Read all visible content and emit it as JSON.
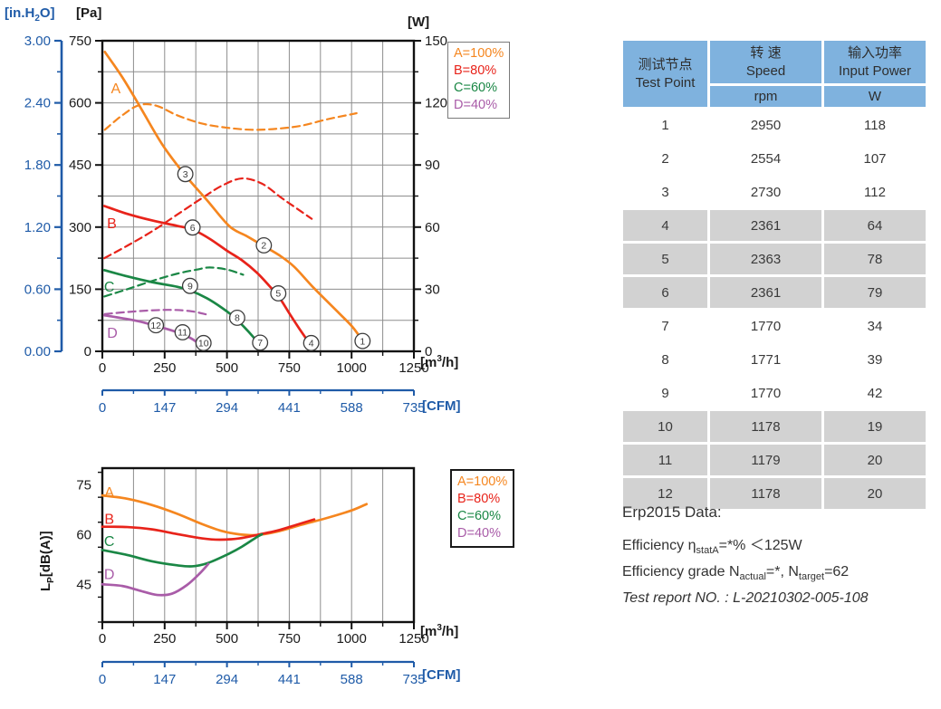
{
  "colors": {
    "orange": "#F5861F",
    "red": "#E8231A",
    "green": "#1A8745",
    "purple": "#A95CA8",
    "axis_blue": "#1F5BA8",
    "grid": "#8d8d8d",
    "frame": "#111111",
    "table_header_bg": "#7FB2DE",
    "table_shaded_bg": "#d2d2d2"
  },
  "axis_labels": {
    "inh2o": {
      "pre": "[in.H",
      "sub": "2",
      "post": "O]"
    },
    "pa": "[Pa]",
    "w": "[W]",
    "m3h": {
      "pre": "[m",
      "sup": "3",
      "post": "/h]"
    },
    "cfm": "[CFM]",
    "lp": {
      "pre": "L",
      "sub": "P",
      "post": "[dB(A)]"
    }
  },
  "chart_data": [
    {
      "type": "line",
      "title": "Fan pressure / input power vs airflow",
      "x_axis": {
        "range": [
          0,
          1250
        ],
        "ticks": [
          0,
          250,
          500,
          750,
          1000,
          1250
        ],
        "grid_step": 125,
        "unit": "[m3/h]"
      },
      "y_left": {
        "range": [
          0,
          750
        ],
        "ticks": [
          0,
          150,
          300,
          450,
          600,
          750
        ],
        "grid_step": 75,
        "unit": "[Pa]"
      },
      "y_right": {
        "range": [
          0,
          150
        ],
        "ticks": [
          0,
          30,
          60,
          90,
          120,
          150
        ],
        "minor_step": 15,
        "unit": "[W]"
      },
      "y_inh2o": {
        "range": [
          0,
          3
        ],
        "tick_labels": [
          "0.00",
          "0.60",
          "1.20",
          "1.80",
          "2.40",
          "3.00"
        ],
        "unit": "[in.H2O]"
      },
      "cfm_axis": {
        "ticks": [
          0,
          147,
          294,
          441,
          588,
          735
        ],
        "unit": "[CFM]"
      },
      "legend": [
        {
          "label": "A=100%",
          "color": "#F5861F"
        },
        {
          "label": "B=80%",
          "color": "#E8231A"
        },
        {
          "label": "C=60%",
          "color": "#1A8745"
        },
        {
          "label": "D=40%",
          "color": "#A95CA8"
        }
      ],
      "curve_labels": [
        {
          "text": "A",
          "x": 54,
          "y": 634,
          "color": "#F5861F"
        },
        {
          "text": "B",
          "x": 38,
          "y": 308,
          "color": "#E8231A"
        },
        {
          "text": "C",
          "x": 28,
          "y": 155,
          "color": "#1A8745"
        },
        {
          "text": "D",
          "x": 40,
          "y": 44,
          "color": "#A95CA8"
        }
      ],
      "point_labels": [
        {
          "n": "1",
          "x": 1044,
          "y": 25
        },
        {
          "n": "2",
          "x": 648,
          "y": 256
        },
        {
          "n": "3",
          "x": 333,
          "y": 428
        },
        {
          "n": "4",
          "x": 838,
          "y": 20
        },
        {
          "n": "5",
          "x": 706,
          "y": 140
        },
        {
          "n": "6",
          "x": 362,
          "y": 299
        },
        {
          "n": "7",
          "x": 633,
          "y": 21
        },
        {
          "n": "8",
          "x": 541,
          "y": 81
        },
        {
          "n": "9",
          "x": 352,
          "y": 158
        },
        {
          "n": "10",
          "x": 406,
          "y": 20
        },
        {
          "n": "11",
          "x": 322,
          "y": 46
        },
        {
          "n": "12",
          "x": 215,
          "y": 63
        }
      ],
      "series": [
        {
          "name": "A input power (dashed, W)",
          "color": "#F5861F",
          "dashed": true,
          "axis": "right",
          "points": [
            [
              10,
              107
            ],
            [
              80,
              114
            ],
            [
              150,
              119
            ],
            [
              220,
              118.5
            ],
            [
              300,
              114
            ],
            [
              400,
              110
            ],
            [
              500,
              108
            ],
            [
              600,
              107
            ],
            [
              700,
              107.5
            ],
            [
              800,
              109
            ],
            [
              900,
              112
            ],
            [
              1000,
              114.5
            ],
            [
              1020,
              115
            ]
          ]
        },
        {
          "name": "B input power (dashed, W)",
          "color": "#E8231A",
          "dashed": true,
          "axis": "right",
          "points": [
            [
              8,
              45
            ],
            [
              100,
              51
            ],
            [
              200,
              58
            ],
            [
              300,
              66
            ],
            [
              400,
              74
            ],
            [
              480,
              80
            ],
            [
              560,
              83.5
            ],
            [
              640,
              81
            ],
            [
              720,
              74
            ],
            [
              780,
              69
            ],
            [
              840,
              64
            ]
          ]
        },
        {
          "name": "C input power (dashed, W)",
          "color": "#1A8745",
          "dashed": true,
          "axis": "right",
          "points": [
            [
              8,
              26.5
            ],
            [
              100,
              30
            ],
            [
              200,
              34
            ],
            [
              300,
              37.5
            ],
            [
              380,
              39.5
            ],
            [
              430,
              40.5
            ],
            [
              500,
              39.5
            ],
            [
              565,
              37
            ]
          ]
        },
        {
          "name": "D input power (dashed, W)",
          "color": "#A95CA8",
          "dashed": true,
          "axis": "right",
          "points": [
            [
              10,
              18
            ],
            [
              100,
              19
            ],
            [
              200,
              19.8
            ],
            [
              285,
              20
            ],
            [
              360,
              19.3
            ],
            [
              418,
              17.8
            ]
          ]
        },
        {
          "name": "A pressure (Pa)",
          "color": "#F5861F",
          "dashed": false,
          "axis": "left",
          "points": [
            [
              10,
              723
            ],
            [
              80,
              662
            ],
            [
              150,
              592
            ],
            [
              240,
              500
            ],
            [
              333,
              425
            ],
            [
              420,
              365
            ],
            [
              510,
              302
            ],
            [
              580,
              278
            ],
            [
              648,
              254
            ],
            [
              710,
              232
            ],
            [
              770,
              204
            ],
            [
              850,
              152
            ],
            [
              950,
              92
            ],
            [
              1005,
              58
            ],
            [
              1048,
              22
            ]
          ]
        },
        {
          "name": "B pressure (Pa)",
          "color": "#E8231A",
          "dashed": false,
          "axis": "left",
          "points": [
            [
              8,
              351
            ],
            [
              100,
              332
            ],
            [
              200,
              316
            ],
            [
              300,
              303
            ],
            [
              362,
              294
            ],
            [
              430,
              272
            ],
            [
              500,
              243
            ],
            [
              560,
              220
            ],
            [
              620,
              190
            ],
            [
              670,
              158
            ],
            [
              710,
              130
            ],
            [
              750,
              92
            ],
            [
              790,
              55
            ],
            [
              828,
              22
            ]
          ]
        },
        {
          "name": "C pressure (Pa)",
          "color": "#1A8745",
          "dashed": false,
          "axis": "left",
          "points": [
            [
              8,
              196
            ],
            [
              100,
              181
            ],
            [
              200,
              167
            ],
            [
              300,
              156
            ],
            [
              352,
              147
            ],
            [
              420,
              128
            ],
            [
              480,
              105
            ],
            [
              530,
              82
            ],
            [
              570,
              58
            ],
            [
              605,
              35
            ],
            [
              628,
              18
            ]
          ]
        },
        {
          "name": "D pressure (Pa)",
          "color": "#A95CA8",
          "dashed": false,
          "axis": "left",
          "points": [
            [
              8,
              87
            ],
            [
              80,
              80
            ],
            [
              150,
              72
            ],
            [
              215,
              61
            ],
            [
              270,
              52
            ],
            [
              322,
              41
            ],
            [
              360,
              30
            ],
            [
              395,
              15
            ],
            [
              415,
              5
            ]
          ]
        }
      ]
    },
    {
      "type": "line",
      "title": "Sound pressure level vs airflow",
      "x_axis": {
        "range": [
          0,
          1250
        ],
        "ticks": [
          0,
          250,
          500,
          750,
          1000,
          1250
        ],
        "grid_step": 125,
        "unit": "[m3/h]"
      },
      "y_left": {
        "range": [
          33.75,
          80
        ],
        "ticks": [
          45,
          60,
          75
        ],
        "grid_step": 7.5,
        "unit": "Lp [dB(A)]"
      },
      "cfm_axis": {
        "ticks": [
          0,
          147,
          294,
          441,
          588,
          735
        ],
        "unit": "[CFM]"
      },
      "legend": [
        {
          "label": "A=100%",
          "color": "#F5861F"
        },
        {
          "label": "B=80%",
          "color": "#E8231A"
        },
        {
          "label": "C=60%",
          "color": "#1A8745"
        },
        {
          "label": "D=40%",
          "color": "#A95CA8"
        }
      ],
      "curve_labels": [
        {
          "text": "A",
          "x": 28,
          "y": 72.6,
          "color": "#F5861F"
        },
        {
          "text": "B",
          "x": 28,
          "y": 64.6,
          "color": "#E8231A"
        },
        {
          "text": "C",
          "x": 28,
          "y": 58.0,
          "color": "#1A8745"
        },
        {
          "text": "D",
          "x": 28,
          "y": 48.0,
          "color": "#A95CA8"
        }
      ],
      "point_labels": [],
      "series": [
        {
          "name": "A noise dB(A)",
          "color": "#F5861F",
          "dashed": false,
          "axis": "left",
          "points": [
            [
              0,
              71.8
            ],
            [
              100,
              70.8
            ],
            [
              200,
              68.9
            ],
            [
              300,
              66.3
            ],
            [
              400,
              63.2
            ],
            [
              480,
              61.1
            ],
            [
              550,
              60.1
            ],
            [
              620,
              59.9
            ],
            [
              700,
              60.9
            ],
            [
              800,
              63.0
            ],
            [
              900,
              65.0
            ],
            [
              1000,
              67.3
            ],
            [
              1060,
              69.2
            ]
          ]
        },
        {
          "name": "B noise dB(A)",
          "color": "#E8231A",
          "dashed": false,
          "axis": "left",
          "points": [
            [
              0,
              62.4
            ],
            [
              100,
              62.3
            ],
            [
              200,
              61.6
            ],
            [
              300,
              60.2
            ],
            [
              400,
              58.9
            ],
            [
              470,
              58.5
            ],
            [
              550,
              58.9
            ],
            [
              630,
              60.1
            ],
            [
              700,
              61.2
            ],
            [
              780,
              63.0
            ],
            [
              850,
              64.6
            ]
          ]
        },
        {
          "name": "C noise dB(A)",
          "color": "#1A8745",
          "dashed": false,
          "axis": "left",
          "points": [
            [
              0,
              55.4
            ],
            [
              100,
              53.9
            ],
            [
              200,
              52.0
            ],
            [
              300,
              50.8
            ],
            [
              360,
              50.5
            ],
            [
              420,
              51.4
            ],
            [
              500,
              54.0
            ],
            [
              560,
              56.4
            ],
            [
              620,
              59.3
            ],
            [
              640,
              60.1
            ]
          ]
        },
        {
          "name": "D noise dB(A)",
          "color": "#A95CA8",
          "dashed": false,
          "axis": "left",
          "points": [
            [
              0,
              45.1
            ],
            [
              80,
              44.6
            ],
            [
              150,
              43.2
            ],
            [
              220,
              41.9
            ],
            [
              280,
              42.3
            ],
            [
              340,
              44.9
            ],
            [
              390,
              48.3
            ],
            [
              425,
              51.2
            ]
          ]
        }
      ]
    }
  ],
  "table": {
    "header": {
      "col1_cn": "测试节点",
      "col1_en": "Test Point",
      "col2_cn": "转 速",
      "col2_en": "Speed",
      "col2_unit": "rpm",
      "col3_cn": "输入功率",
      "col3_en": "Input Power",
      "col3_unit": "W"
    },
    "rows": [
      [
        "1",
        "2950",
        "118"
      ],
      [
        "2",
        "2554",
        "107"
      ],
      [
        "3",
        "2730",
        "112"
      ],
      [
        "4",
        "2361",
        "64"
      ],
      [
        "5",
        "2363",
        "78"
      ],
      [
        "6",
        "2361",
        "79"
      ],
      [
        "7",
        "1770",
        "34"
      ],
      [
        "8",
        "1771",
        "39"
      ],
      [
        "9",
        "1770",
        "42"
      ],
      [
        "10",
        "1178",
        "19"
      ],
      [
        "11",
        "1179",
        "20"
      ],
      [
        "12",
        "1178",
        "20"
      ]
    ],
    "shaded_rows": [
      4,
      5,
      6,
      10,
      11,
      12
    ]
  },
  "erp": {
    "title": "Erp2015  Data:",
    "l2a": "Efficiency η",
    "l2sub": "statA",
    "l2b": "=*%  ＜125W",
    "l3a": "Efficiency grade N",
    "l3sub1": "actual",
    "l3b": "=*, N",
    "l3sub2": "target",
    "l3c": "=62",
    "report": "Test report NO. : L-20210302-005-108"
  }
}
